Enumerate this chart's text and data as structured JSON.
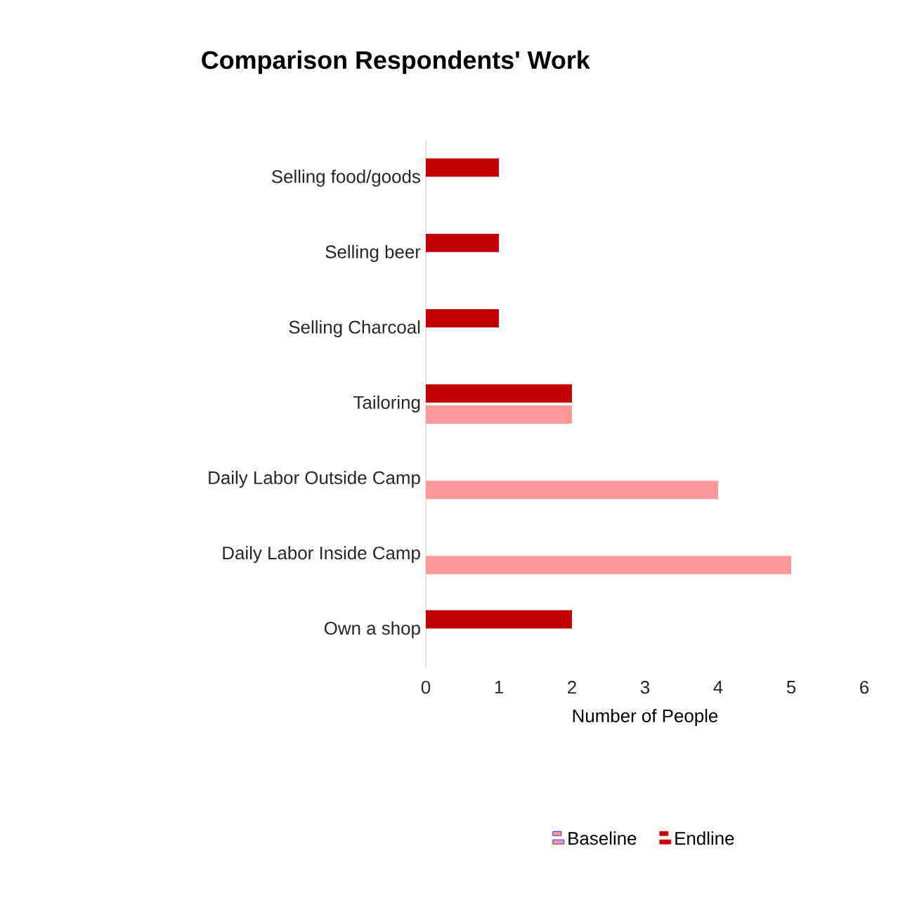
{
  "chart_data": {
    "type": "bar",
    "orientation": "horizontal",
    "title": "Comparison Respondents' Work",
    "xlabel": "Number of People",
    "categories": [
      "Selling food/goods",
      "Selling beer",
      "Selling Charcoal",
      "Tailoring",
      "Daily Labor Outside Camp",
      "Daily Labor Inside Camp",
      "Own a shop"
    ],
    "series": [
      {
        "name": "Baseline",
        "color": "#ff9999",
        "values": [
          null,
          null,
          null,
          2,
          4,
          5,
          null
        ]
      },
      {
        "name": "Endline",
        "color": "#c00000",
        "values": [
          1,
          1,
          1,
          2,
          null,
          null,
          2
        ]
      }
    ],
    "xlim": [
      0,
      6
    ],
    "xticks": [
      0,
      1,
      2,
      3,
      4,
      5,
      6
    ],
    "grid": false,
    "legend": "bottom"
  }
}
